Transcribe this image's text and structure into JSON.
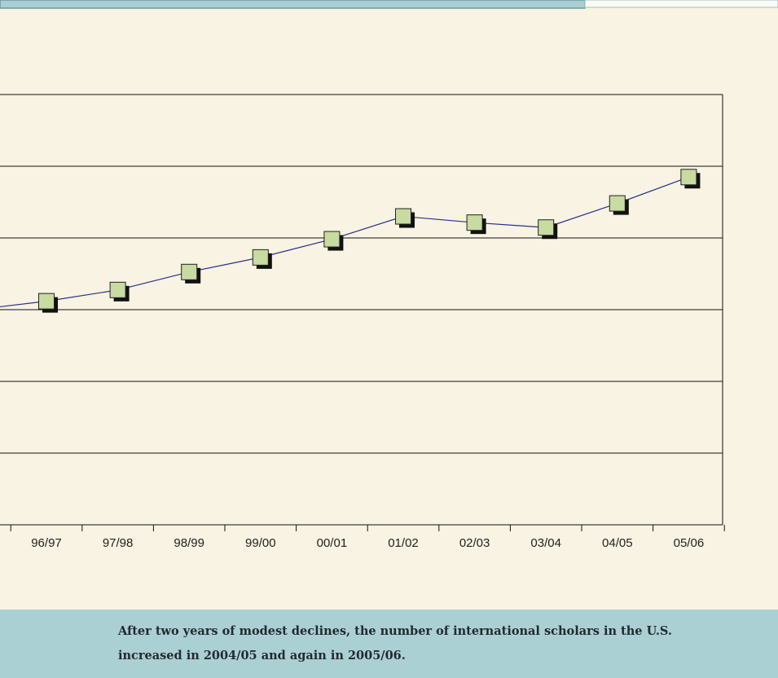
{
  "chart_data": {
    "type": "line",
    "categories": [
      null,
      "96/97",
      "97/98",
      "98/99",
      "99/00",
      "00/01",
      "01/02",
      "02/03",
      "03/04",
      "04/05",
      "05/06"
    ],
    "series": [
      {
        "name": "International scholars",
        "color": "#2b2f8a",
        "marker_color": "#c8dba0",
        "values": [
          59981,
          62354,
          65494,
          70501,
          74571,
          79651,
          86015,
          84281,
          82905,
          89634,
          96981
        ]
      }
    ],
    "ylim": [
      0,
      120000
    ],
    "yticks": [
      0,
      20000,
      40000,
      60000,
      80000,
      100000,
      120000
    ],
    "grid": true
  },
  "caption": "After two years of modest declines, the number of international scholars in the U.S. increased in 2004/05 and again in 2005/06."
}
